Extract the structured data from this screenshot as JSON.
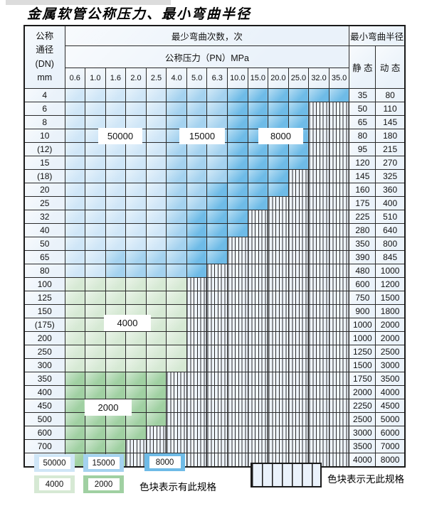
{
  "page_title": "金属软管公称压力、最小弯曲半径",
  "colors": {
    "c50000": "#cfe6f7",
    "c15000": "#a4d2ef",
    "c8000": "#6ebbe7",
    "c4000": "#d6e9d4",
    "c2000": "#a0d0a2",
    "cell_bg": "#eaf2fa",
    "hatch_bg": "#eff5fc"
  },
  "header": {
    "dn_label": "公称\n通径\n(DN)\nmm",
    "bend_cycles_label": "最少弯曲次数，次",
    "pressure_label": "公称压力（PN）MPa",
    "radius_label": "最小弯曲半径",
    "static_label": "静 态",
    "dynamic_label": "动 态",
    "pressures": [
      "0.6",
      "1.0",
      "1.6",
      "2.0",
      "2.5",
      "4.0",
      "5.0",
      "6.3",
      "10.0",
      "15.0",
      "20.0",
      "25.0",
      "32.0",
      "35.0"
    ]
  },
  "cell_code_legend": {
    "L": "50000",
    "M": "15000",
    "D": "8000",
    "G": "4000",
    "E": "2000",
    "H": "无此规格"
  },
  "rows": [
    {
      "dn": "4",
      "cells": "LLLLLMMMDDDDDD",
      "static": "35",
      "dynamic": "80"
    },
    {
      "dn": "6",
      "cells": "LLLLLMMMDDDDHH",
      "static": "50",
      "dynamic": "110"
    },
    {
      "dn": "8",
      "cells": "LLLLLMMMDDDDHH",
      "static": "65",
      "dynamic": "145"
    },
    {
      "dn": "10",
      "cells": "LLLLLMMMDDDDHH",
      "static": "80",
      "dynamic": "180"
    },
    {
      "dn": "(12)",
      "cells": "LLLLLMMMDDDDHH",
      "static": "95",
      "dynamic": "215"
    },
    {
      "dn": "15",
      "cells": "LLLLLMMMDDDDHH",
      "static": "120",
      "dynamic": "270"
    },
    {
      "dn": "(18)",
      "cells": "LLLLLMMMDDDHHH",
      "static": "145",
      "dynamic": "325"
    },
    {
      "dn": "20",
      "cells": "LLLLLMMDDDDHHH",
      "static": "160",
      "dynamic": "360"
    },
    {
      "dn": "25",
      "cells": "LLLLLMMDDDHHHH",
      "static": "175",
      "dynamic": "400"
    },
    {
      "dn": "32",
      "cells": "LLLLLMDDDHHHHH",
      "static": "225",
      "dynamic": "510"
    },
    {
      "dn": "40",
      "cells": "LLLLLMDDDHHHHH",
      "static": "280",
      "dynamic": "640"
    },
    {
      "dn": "50",
      "cells": "LLLLLMDDHHHHHH",
      "static": "350",
      "dynamic": "800"
    },
    {
      "dn": "65",
      "cells": "LLMMMMDDHHHHHH",
      "static": "390",
      "dynamic": "845"
    },
    {
      "dn": "80",
      "cells": "LLMMMMDHHHHHHH",
      "static": "480",
      "dynamic": "1000"
    },
    {
      "dn": "100",
      "cells": "GGGGGGHHHHHHHH",
      "static": "600",
      "dynamic": "1200"
    },
    {
      "dn": "125",
      "cells": "GGGGGGHHHHHHHH",
      "static": "750",
      "dynamic": "1500"
    },
    {
      "dn": "150",
      "cells": "GGGGGGHHHHHHHH",
      "static": "900",
      "dynamic": "1800"
    },
    {
      "dn": "(175)",
      "cells": "GGGGGGHHHHHHHH",
      "static": "1000",
      "dynamic": "2000"
    },
    {
      "dn": "200",
      "cells": "GGGGGGHHHHHHHH",
      "static": "1000",
      "dynamic": "2000"
    },
    {
      "dn": "250",
      "cells": "GGGGGGHHHHHHHH",
      "static": "1250",
      "dynamic": "2500"
    },
    {
      "dn": "300",
      "cells": "GGGGGGHHHHHHHH",
      "static": "1500",
      "dynamic": "3000"
    },
    {
      "dn": "350",
      "cells": "EEEEEHHHHHHHHH",
      "static": "1750",
      "dynamic": "3500"
    },
    {
      "dn": "400",
      "cells": "EEEEEHHHHHHHHH",
      "static": "2000",
      "dynamic": "4000"
    },
    {
      "dn": "450",
      "cells": "EEEEEHHHHHHHHH",
      "static": "2250",
      "dynamic": "4500"
    },
    {
      "dn": "500",
      "cells": "EEEEEHHHHHHHHH",
      "static": "2500",
      "dynamic": "5000"
    },
    {
      "dn": "600",
      "cells": "EEEEHHHHHHHHHH",
      "static": "3000",
      "dynamic": "6000"
    },
    {
      "dn": "700",
      "cells": "EEEHHHHHHHHHHH",
      "static": "3500",
      "dynamic": "7000"
    },
    {
      "dn": "800",
      "cells": "EEEHHHHHHHHHHH",
      "static": "4000",
      "dynamic": "8000"
    }
  ],
  "overlays": [
    {
      "text": "50000"
    },
    {
      "text": "15000"
    },
    {
      "text": "8000"
    },
    {
      "text": "4000"
    },
    {
      "text": "2000"
    }
  ],
  "legend": {
    "swatches": [
      {
        "label": "50000",
        "key": "c50000"
      },
      {
        "label": "15000",
        "key": "c15000"
      },
      {
        "label": "8000",
        "key": "c8000"
      },
      {
        "label": "4000",
        "key": "c4000"
      },
      {
        "label": "2000",
        "key": "c2000"
      }
    ],
    "has_spec_text": "色块表示有此规格",
    "no_spec_text": "色块表示无此规格"
  }
}
